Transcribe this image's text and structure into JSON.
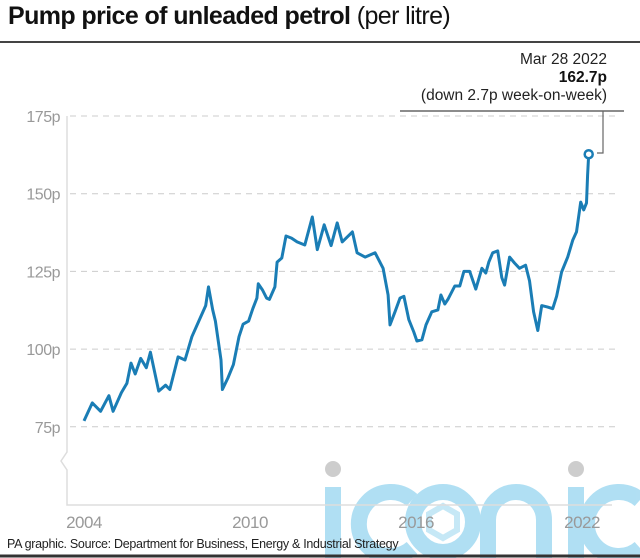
{
  "title": {
    "main": "Pump price of unleaded petrol",
    "sub": "(per litre)"
  },
  "annotation": {
    "date": "Mar 28 2022",
    "value": "162.7p",
    "note": "(down 2.7p week-on-week)"
  },
  "footer": "PA graphic. Source: Department for Business, Energy & Industrial Strategy",
  "watermark": "iconic",
  "colors": {
    "line": "#1a7db5",
    "grid": "#cccccc",
    "axis_text": "#999999",
    "watermark": "#a8dcf2"
  },
  "chart_data": {
    "type": "line",
    "title": "Pump price of unleaded petrol (per litre)",
    "xlabel": "",
    "ylabel": "",
    "xlim": [
      2004,
      2022.3
    ],
    "ylim": [
      60,
      175
    ],
    "y_axis_break": true,
    "grid": true,
    "xticks": [
      {
        "value": 2004,
        "label": "2004"
      },
      {
        "value": 2010,
        "label": "2010"
      },
      {
        "value": 2016,
        "label": "2016"
      },
      {
        "value": 2022,
        "label": "2022"
      }
    ],
    "yticks": [
      {
        "value": 75,
        "label": "75p"
      },
      {
        "value": 100,
        "label": "100p"
      },
      {
        "value": 125,
        "label": "125p"
      },
      {
        "value": 150,
        "label": "150p"
      },
      {
        "value": 175,
        "label": "175p"
      }
    ],
    "series": [
      {
        "points": [
          [
            2004.0,
            76.9
          ],
          [
            2004.3,
            82.7
          ],
          [
            2004.6,
            80
          ],
          [
            2004.9,
            85
          ],
          [
            2005.05,
            80
          ],
          [
            2005.35,
            86
          ],
          [
            2005.55,
            89
          ],
          [
            2005.7,
            95.5
          ],
          [
            2005.85,
            92
          ],
          [
            2006.05,
            97
          ],
          [
            2006.25,
            94
          ],
          [
            2006.4,
            99
          ],
          [
            2006.7,
            86.5
          ],
          [
            2006.95,
            88.4
          ],
          [
            2007.1,
            87
          ],
          [
            2007.4,
            97.5
          ],
          [
            2007.65,
            96.5
          ],
          [
            2007.9,
            104
          ],
          [
            2008.15,
            109
          ],
          [
            2008.4,
            114
          ],
          [
            2008.5,
            120
          ],
          [
            2008.65,
            112.6
          ],
          [
            2008.75,
            109
          ],
          [
            2008.95,
            96.5
          ],
          [
            2009.0,
            87
          ],
          [
            2009.2,
            90.7
          ],
          [
            2009.4,
            95
          ],
          [
            2009.6,
            104
          ],
          [
            2009.75,
            108
          ],
          [
            2009.95,
            109
          ],
          [
            2010.1,
            113
          ],
          [
            2010.25,
            116.4
          ],
          [
            2010.3,
            121
          ],
          [
            2010.45,
            119
          ],
          [
            2010.6,
            116.4
          ],
          [
            2010.7,
            116
          ],
          [
            2010.9,
            120
          ],
          [
            2010.98,
            128
          ],
          [
            2011.15,
            129.3
          ],
          [
            2011.3,
            136.4
          ],
          [
            2011.5,
            135.7
          ],
          [
            2011.7,
            134.5
          ],
          [
            2011.98,
            133.5
          ],
          [
            2012.25,
            142.5
          ],
          [
            2012.43,
            132
          ],
          [
            2012.68,
            140
          ],
          [
            2012.93,
            133.3
          ],
          [
            2013.15,
            140.6
          ],
          [
            2013.33,
            134.5
          ],
          [
            2013.7,
            137.7
          ],
          [
            2013.87,
            131
          ],
          [
            2014.16,
            129.6
          ],
          [
            2014.52,
            131
          ],
          [
            2014.81,
            126
          ],
          [
            2014.99,
            117.4
          ],
          [
            2015.06,
            107.8
          ],
          [
            2015.24,
            112
          ],
          [
            2015.42,
            116.4
          ],
          [
            2015.56,
            117
          ],
          [
            2015.74,
            109.5
          ],
          [
            2015.92,
            105.5
          ],
          [
            2016.03,
            102.6
          ],
          [
            2016.21,
            103
          ],
          [
            2016.36,
            107.8
          ],
          [
            2016.57,
            112
          ],
          [
            2016.79,
            112.6
          ],
          [
            2016.9,
            117.4
          ],
          [
            2017.04,
            114.5
          ],
          [
            2017.15,
            116
          ],
          [
            2017.4,
            120.3
          ],
          [
            2017.58,
            120.3
          ],
          [
            2017.73,
            125
          ],
          [
            2017.94,
            125
          ],
          [
            2018.16,
            119.3
          ],
          [
            2018.38,
            126
          ],
          [
            2018.52,
            124.5
          ],
          [
            2018.63,
            128
          ],
          [
            2018.77,
            131
          ],
          [
            2018.95,
            131.6
          ],
          [
            2019.1,
            123
          ],
          [
            2019.2,
            120.6
          ],
          [
            2019.38,
            129.6
          ],
          [
            2019.56,
            127.7
          ],
          [
            2019.74,
            126
          ],
          [
            2019.96,
            127
          ],
          [
            2020.1,
            122
          ],
          [
            2020.25,
            112
          ],
          [
            2020.4,
            106
          ],
          [
            2020.54,
            114
          ],
          [
            2020.76,
            113.5
          ],
          [
            2020.94,
            113
          ],
          [
            2021.08,
            117
          ],
          [
            2021.26,
            124.8
          ],
          [
            2021.48,
            129.6
          ],
          [
            2021.66,
            135
          ],
          [
            2021.8,
            137.7
          ],
          [
            2021.95,
            147.3
          ],
          [
            2022.06,
            144.8
          ],
          [
            2022.16,
            147
          ],
          [
            2022.2,
            156
          ],
          [
            2022.24,
            162.7
          ]
        ]
      }
    ],
    "highlight": {
      "x": 2022.24,
      "y": 162.7
    }
  }
}
